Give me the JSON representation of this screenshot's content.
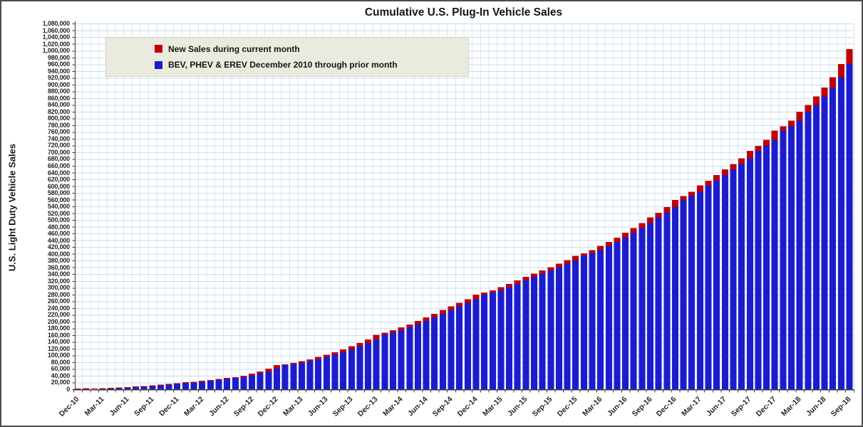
{
  "chart_data": {
    "type": "bar",
    "stacked": true,
    "title": "Cumulative U.S. Plug-In Vehicle Sales",
    "xlabel": "",
    "ylabel": "U.S. Light Duty Vehicle Sales",
    "ylim": [
      0,
      1080000
    ],
    "ytick_step": 20000,
    "xtick_label_interval": 3,
    "grid": "horizontal and vertical light-blue gridlines",
    "legend_position": "top-left inside plot area",
    "categories": [
      "Dec-10",
      "Jan-11",
      "Feb-11",
      "Mar-11",
      "Apr-11",
      "May-11",
      "Jun-11",
      "Jul-11",
      "Aug-11",
      "Sep-11",
      "Oct-11",
      "Nov-11",
      "Dec-11",
      "Jan-12",
      "Feb-12",
      "Mar-12",
      "Apr-12",
      "May-12",
      "Jun-12",
      "Jul-12",
      "Aug-12",
      "Sep-12",
      "Oct-12",
      "Nov-12",
      "Dec-12",
      "Jan-13",
      "Feb-13",
      "Mar-13",
      "Apr-13",
      "May-13",
      "Jun-13",
      "Jul-13",
      "Aug-13",
      "Sep-13",
      "Oct-13",
      "Nov-13",
      "Dec-13",
      "Jan-14",
      "Feb-14",
      "Mar-14",
      "Apr-14",
      "May-14",
      "Jun-14",
      "Jul-14",
      "Aug-14",
      "Sep-14",
      "Oct-14",
      "Nov-14",
      "Dec-14",
      "Jan-15",
      "Feb-15",
      "Mar-15",
      "Apr-15",
      "May-15",
      "Jun-15",
      "Jul-15",
      "Aug-15",
      "Sep-15",
      "Oct-15",
      "Nov-15",
      "Dec-15",
      "Jan-16",
      "Feb-16",
      "Mar-16",
      "Apr-16",
      "May-16",
      "Jun-16",
      "Jul-16",
      "Aug-16",
      "Sep-16",
      "Oct-16",
      "Nov-16",
      "Dec-16",
      "Jan-17",
      "Feb-17",
      "Mar-17",
      "Apr-17",
      "May-17",
      "Jun-17",
      "Jul-17",
      "Aug-17",
      "Sep-17",
      "Oct-17",
      "Nov-17",
      "Dec-17",
      "Jan-18",
      "Feb-18",
      "Mar-18",
      "Apr-18",
      "May-18",
      "Jun-18",
      "Jul-18",
      "Aug-18",
      "Sep-18"
    ],
    "series": [
      {
        "name": "New Sales during current month",
        "color": "#C00000",
        "role": "monthly-new-sales",
        "values": [
          345,
          321,
          374,
          608,
          973,
          1465,
          1708,
          1335,
          1659,
          2297,
          2322,
          2326,
          2312,
          1100,
          1800,
          3900,
          2000,
          3200,
          3400,
          2700,
          3600,
          6000,
          7000,
          8000,
          10300,
          2500,
          3800,
          5400,
          5800,
          6800,
          7100,
          7000,
          8600,
          9200,
          9900,
          10000,
          13900,
          6000,
          7100,
          8400,
          9100,
          10400,
          10600,
          10500,
          11000,
          10900,
          10500,
          10600,
          12900,
          6500,
          7100,
          9400,
          9300,
          10400,
          10200,
          9600,
          9800,
          9600,
          9900,
          10400,
          12800,
          7800,
          9300,
          12500,
          11600,
          12900,
          13800,
          14200,
          14500,
          16700,
          13900,
          17200,
          20600,
          11500,
          12800,
          18700,
          13900,
          16800,
          17200,
          15700,
          16700,
          21700,
          14700,
          17700,
          27600,
          12400,
          17200,
          26600,
          20000,
          25000,
          25600,
          31000,
          38500,
          44500
        ]
      },
      {
        "name": "BEV, PHEV & EREV December 2010 through prior month",
        "color": "#1C1CCE",
        "role": "cumulative-through-prior-month",
        "values": [
          0,
          345,
          666,
          1040,
          1648,
          2621,
          4086,
          5794,
          7129,
          8788,
          11085,
          13407,
          15733,
          18045,
          19145,
          20945,
          24845,
          26845,
          30045,
          33445,
          36145,
          39745,
          45745,
          52745,
          60745,
          71045,
          73545,
          77345,
          82745,
          88545,
          95345,
          102445,
          109445,
          118045,
          127245,
          137145,
          147145,
          161045,
          167045,
          174145,
          182545,
          191645,
          202045,
          212645,
          223145,
          234145,
          245045,
          255545,
          266145,
          279045,
          285545,
          292645,
          302045,
          311345,
          321745,
          331945,
          341545,
          351345,
          360945,
          370845,
          381245,
          394045,
          401845,
          411145,
          423645,
          435245,
          448145,
          461945,
          476145,
          490645,
          507345,
          521245,
          538445,
          559045,
          570545,
          583345,
          602045,
          615945,
          632745,
          649945,
          665645,
          682345,
          704045,
          718745,
          736445,
          764045,
          776445,
          793645,
          820245,
          840245,
          865245,
          890845,
          921845,
          960345
        ]
      }
    ]
  },
  "colors": {
    "bar_blue": "#1C1CCE",
    "bar_red": "#C00000",
    "gridline_h": "#C6DEF0",
    "gridline_v": "#D7E7F5",
    "axis": "#404040",
    "legend_bg": "#EAEADF",
    "frame_border": "#4d4d4d"
  }
}
